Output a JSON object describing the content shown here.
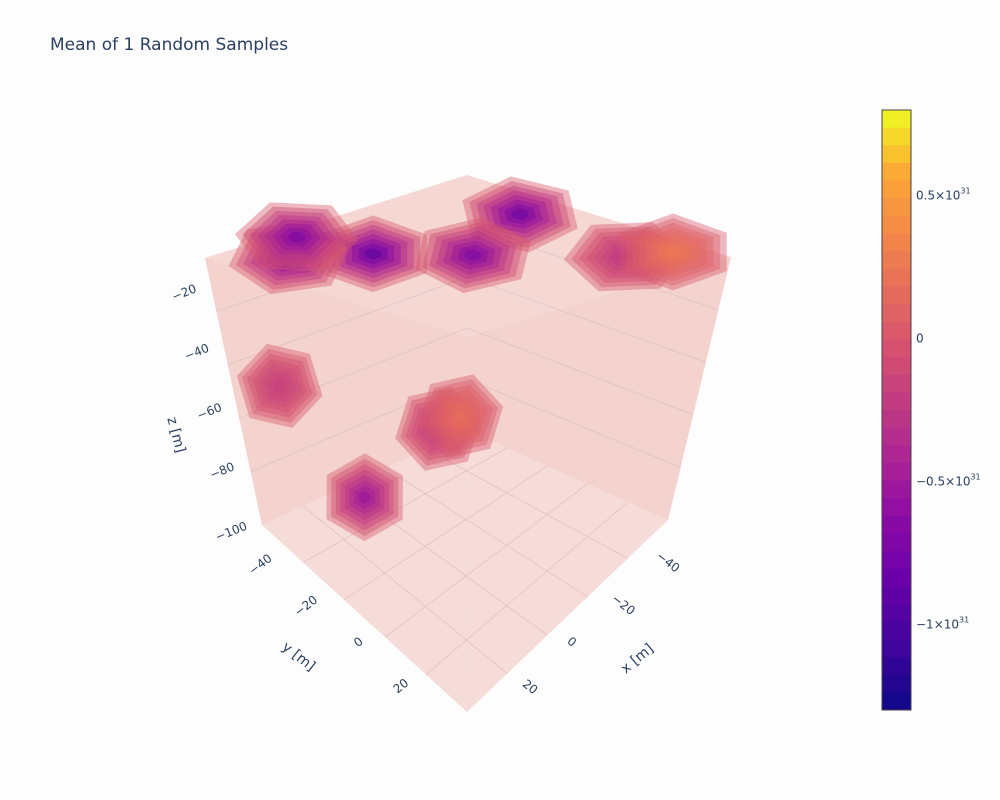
{
  "chart_data": {
    "type": "isosurface",
    "title": "Mean of 1 Random Samples",
    "axes": {
      "x": {
        "title": "x [m]",
        "ticks": [
          -40,
          -20,
          0,
          20
        ],
        "tick_labels": [
          "−40",
          "−20",
          "0",
          "20"
        ]
      },
      "y": {
        "title": "y [m]",
        "ticks": [
          -40,
          -20,
          0,
          20
        ],
        "tick_labels": [
          "−40",
          "−20",
          "0",
          "20"
        ]
      },
      "z": {
        "title": "z [m]",
        "ticks": [
          -20,
          -40,
          -60,
          -80,
          -100
        ],
        "tick_labels": [
          "−20",
          "−40",
          "−60",
          "−80",
          "−100"
        ]
      }
    },
    "colorbar": {
      "min": -1.3e+31,
      "max": 8e+30,
      "colorscale": "plasma",
      "ticks": [
        {
          "value": 5e+30,
          "mantissa": "0.5×10",
          "exp": "31"
        },
        {
          "value": 0,
          "mantissa": "0",
          "exp": ""
        },
        {
          "value": -5e+30,
          "mantissa": "−0.5×10",
          "exp": "31"
        },
        {
          "value": -1e+31,
          "mantissa": "−1×10",
          "exp": "31"
        }
      ]
    },
    "blobs": [
      {
        "face": "top",
        "u": 0.34,
        "v": 0.3,
        "min_value": -1e+31
      },
      {
        "face": "top",
        "u": 0.16,
        "v": 0.16,
        "min_value": -8e+30
      },
      {
        "face": "top",
        "u": 0.3,
        "v": 0.05,
        "min_value": -8e+30
      },
      {
        "face": "top",
        "u": 0.86,
        "v": 0.34,
        "min_value": -9e+30
      },
      {
        "face": "top",
        "u": 0.52,
        "v": 0.5,
        "min_value": -8e+30
      },
      {
        "face": "top",
        "u": 0.8,
        "v": 0.8,
        "min_value": -3e+30
      },
      {
        "face": "left",
        "u": 0.22,
        "v": 0.38,
        "min_value": -2e+30
      },
      {
        "face": "left",
        "u": 0.55,
        "v": 0.6,
        "min_value": -6e+30
      },
      {
        "face": "left",
        "u": 0.88,
        "v": 0.28,
        "min_value": -3e+30
      }
    ],
    "positive_patches": [
      {
        "face": "top",
        "u": 0.92,
        "v": 0.86,
        "max_value": 3e+30
      },
      {
        "face": "left",
        "u": 0.97,
        "v": 0.22,
        "max_value": 2e+30
      }
    ]
  }
}
